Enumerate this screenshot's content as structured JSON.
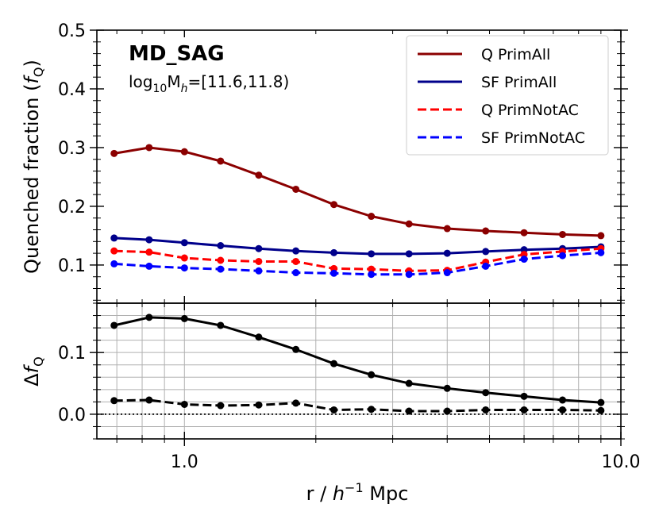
{
  "chart_data": [
    {
      "type": "line",
      "panel": "top",
      "title": "MD_SAG",
      "subtitle_parts": [
        "log",
        "10",
        "M",
        "h",
        "=[11.6,11.8)"
      ],
      "ylabel_parts": [
        "Quenched fraction (",
        "f",
        "Q",
        ")"
      ],
      "xscale": "log",
      "xlim": [
        0.63,
        10.0
      ],
      "ylim": [
        0.035,
        0.5
      ],
      "yticks": [
        0.1,
        0.2,
        0.3,
        0.4,
        0.5
      ],
      "ytick_labels": [
        "0.1",
        "0.2",
        "0.3",
        "0.4",
        "0.5"
      ],
      "grid": false,
      "legend_position": "top-right",
      "x": [
        0.69,
        0.83,
        1.0,
        1.21,
        1.48,
        1.8,
        2.2,
        2.68,
        3.27,
        4.0,
        4.9,
        6.0,
        7.35,
        9.0
      ],
      "series": [
        {
          "name": "Q PrimAll",
          "color": "#8b0000",
          "dashed": false,
          "values": [
            0.29,
            0.3,
            0.293,
            0.277,
            0.253,
            0.229,
            0.203,
            0.183,
            0.17,
            0.162,
            0.158,
            0.155,
            0.152,
            0.15
          ]
        },
        {
          "name": "SF PrimAll",
          "color": "#00008b",
          "dashed": false,
          "values": [
            0.146,
            0.143,
            0.138,
            0.133,
            0.128,
            0.124,
            0.121,
            0.119,
            0.119,
            0.12,
            0.123,
            0.126,
            0.128,
            0.131
          ]
        },
        {
          "name": "Q PrimNotAC",
          "color": "#ff0000",
          "dashed": true,
          "values": [
            0.124,
            0.122,
            0.112,
            0.108,
            0.106,
            0.106,
            0.094,
            0.093,
            0.09,
            0.091,
            0.105,
            0.118,
            0.123,
            0.128
          ]
        },
        {
          "name": "SF PrimNotAC",
          "color": "#0000ff",
          "dashed": true,
          "values": [
            0.102,
            0.098,
            0.095,
            0.093,
            0.09,
            0.087,
            0.086,
            0.084,
            0.084,
            0.087,
            0.098,
            0.11,
            0.116,
            0.121
          ]
        }
      ]
    },
    {
      "type": "line",
      "panel": "bottom",
      "xlabel_parts": [
        "r / ",
        "h",
        "−1",
        " Mpc"
      ],
      "ylabel_parts": [
        "Δ",
        "f",
        "Q"
      ],
      "xscale": "log",
      "xlim": [
        0.63,
        10.0
      ],
      "ylim": [
        -0.04,
        0.18
      ],
      "xticks": [
        1.0,
        10.0
      ],
      "xtick_labels": [
        "1.0",
        "10.0"
      ],
      "yticks": [
        0.0,
        0.1
      ],
      "ytick_labels": [
        "0.0",
        "0.1"
      ],
      "grid": true,
      "reference_line_y": 0.0,
      "x": [
        0.69,
        0.83,
        1.0,
        1.21,
        1.48,
        1.8,
        2.2,
        2.68,
        3.27,
        4.0,
        4.9,
        6.0,
        7.35,
        9.0
      ],
      "series": [
        {
          "color": "#000000",
          "dashed": false,
          "values": [
            0.144,
            0.157,
            0.155,
            0.144,
            0.125,
            0.105,
            0.082,
            0.064,
            0.05,
            0.042,
            0.035,
            0.029,
            0.023,
            0.019
          ]
        },
        {
          "color": "#000000",
          "dashed": true,
          "values": [
            0.022,
            0.023,
            0.016,
            0.014,
            0.015,
            0.018,
            0.007,
            0.008,
            0.005,
            0.005,
            0.007,
            0.007,
            0.007,
            0.006
          ]
        }
      ]
    }
  ]
}
